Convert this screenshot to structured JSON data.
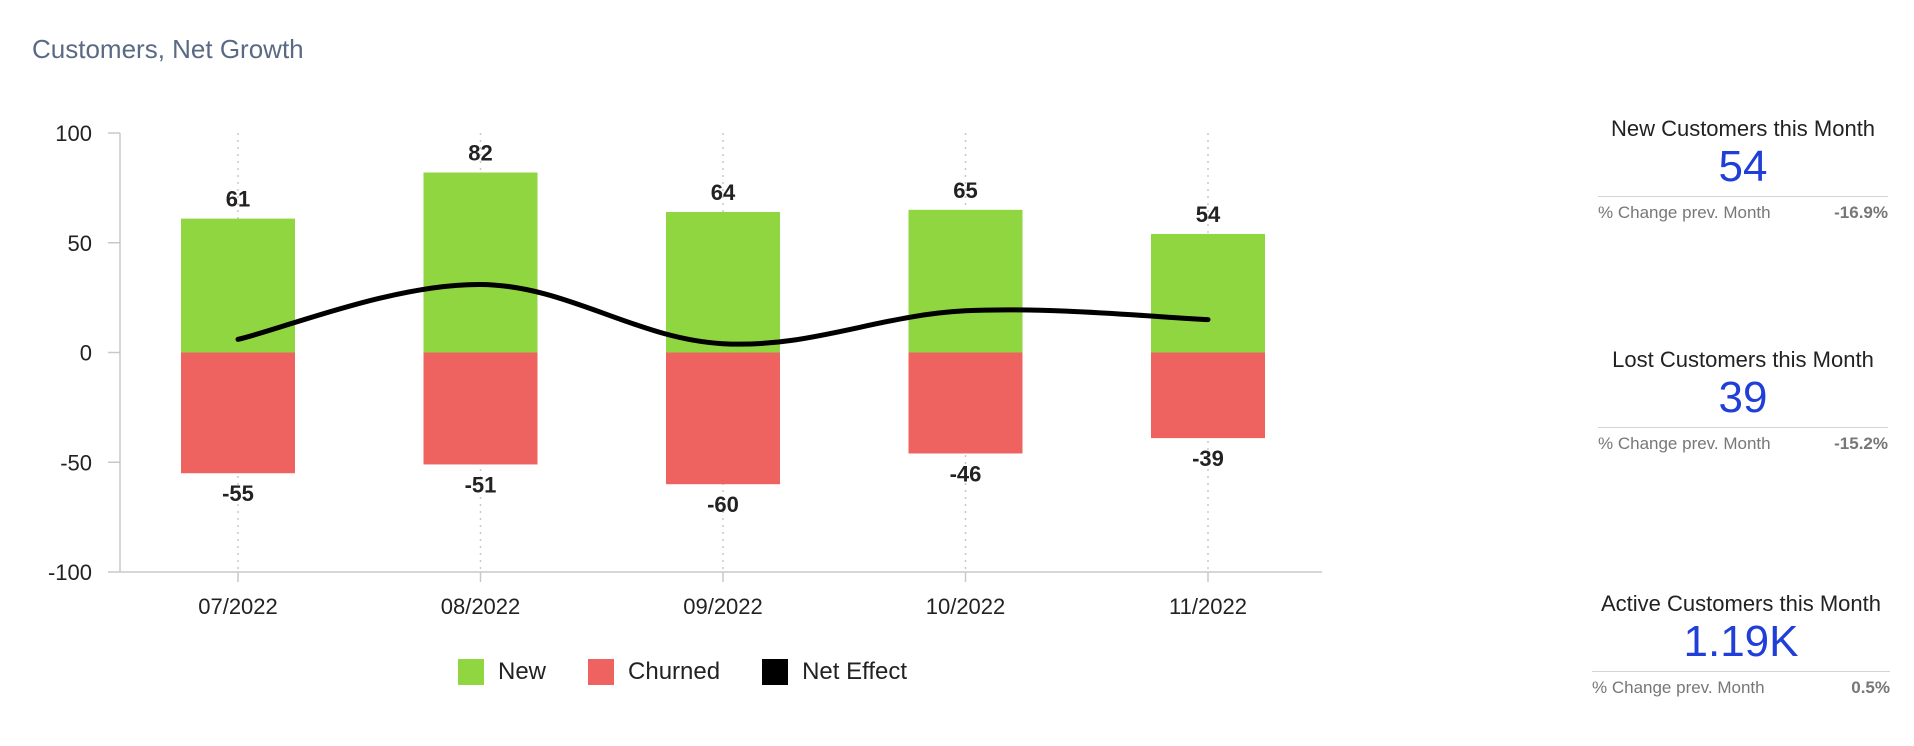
{
  "title": "Customers, Net Growth",
  "chart_data": {
    "type": "bar",
    "categories": [
      "07/2022",
      "08/2022",
      "09/2022",
      "10/2022",
      "11/2022"
    ],
    "series": [
      {
        "name": "New",
        "type": "bar",
        "color": "#8fd641",
        "values": [
          61,
          82,
          64,
          65,
          54
        ]
      },
      {
        "name": "Churned",
        "type": "bar",
        "color": "#ee6360",
        "values": [
          -55,
          -51,
          -60,
          -46,
          -39
        ]
      },
      {
        "name": "Net Effect",
        "type": "line",
        "color": "#000000",
        "values": [
          6,
          31,
          4,
          19,
          15
        ]
      }
    ],
    "ylim": [
      -100,
      100
    ],
    "yticks": [
      100,
      50,
      0,
      -50,
      -100
    ],
    "xlabel": "",
    "ylabel": "",
    "legend": "bottom",
    "grid": "vertical dotted"
  },
  "kpis": [
    {
      "title": "New Customers this Month",
      "value": "54",
      "change_label": "% Change prev. Month",
      "change": "-16.9%"
    },
    {
      "title": "Lost Customers this Month",
      "value": "39",
      "change_label": "% Change prev. Month",
      "change": "-15.2%"
    },
    {
      "title": "Active Customers this Month",
      "value": "1.19K",
      "change_label": "% Change prev. Month",
      "change": "0.5%"
    }
  ],
  "legend": [
    {
      "label": "New",
      "color": "#8fd641"
    },
    {
      "label": "Churned",
      "color": "#ee6360"
    },
    {
      "label": "Net Effect",
      "color": "#000000"
    }
  ]
}
